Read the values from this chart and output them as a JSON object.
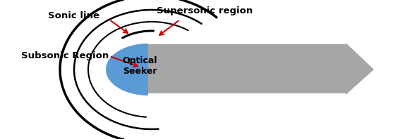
{
  "background_color": "#ffffff",
  "body_color": "#a6a6a6",
  "seeker_color": "#5b9bd5",
  "shock_color": "#000000",
  "arrow_color": "#cc0000",
  "text_color": "#000000",
  "labels": {
    "sonic_line": "Sonic line",
    "supersonic": "Supersonic region",
    "subsonic": "Subsonic Region",
    "seeker": "Optical\nSeeker"
  },
  "figsize": [
    5.57,
    1.98
  ],
  "dpi": 100,
  "xlim": [
    0,
    557
  ],
  "ylim": [
    0,
    198
  ]
}
